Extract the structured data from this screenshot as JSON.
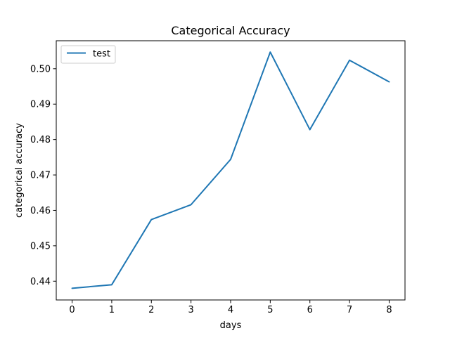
{
  "chart_data": {
    "type": "line",
    "title": "Categorical Accuracy",
    "xlabel": "days",
    "ylabel": "categorical accuracy",
    "x": [
      0,
      1,
      2,
      3,
      4,
      5,
      6,
      7,
      8
    ],
    "series": [
      {
        "name": "test",
        "color": "#1f77b4",
        "values": [
          0.438,
          0.439,
          0.4574,
          0.4616,
          0.4744,
          0.5047,
          0.4828,
          0.5024,
          0.4963
        ]
      }
    ],
    "xlim": [
      -0.4,
      8.4
    ],
    "ylim": [
      0.4347,
      0.5079
    ],
    "xticks": [
      0,
      1,
      2,
      3,
      4,
      5,
      6,
      7,
      8
    ],
    "xtick_labels": [
      "0",
      "1",
      "2",
      "3",
      "4",
      "5",
      "6",
      "7",
      "8"
    ],
    "yticks": [
      0.44,
      0.45,
      0.46,
      0.47,
      0.48,
      0.49,
      0.5
    ],
    "ytick_labels": [
      "0.44",
      "0.45",
      "0.46",
      "0.47",
      "0.48",
      "0.49",
      "0.50"
    ],
    "grid": false,
    "legend_position": "upper left"
  }
}
